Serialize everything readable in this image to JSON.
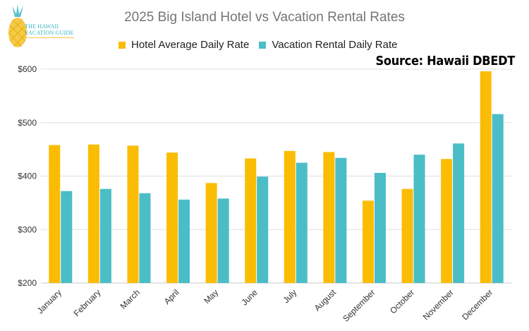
{
  "logo": {
    "line1": "THE HAWAII",
    "line2": "VACATION GUIDE"
  },
  "source_note": "Source: Hawaii DBEDT",
  "colors": {
    "hotel": "#FBBC04",
    "vacation": "#4BBDC6",
    "grid": "#e0e0e0"
  },
  "chart_data": {
    "type": "bar",
    "title": "2025 Big Island Hotel vs Vacation Rental Rates",
    "xlabel": "",
    "ylabel": "",
    "ylim": [
      200,
      600
    ],
    "yticks": [
      "$200",
      "$300",
      "$400",
      "$500",
      "$600"
    ],
    "ytick_values": [
      200,
      300,
      400,
      500,
      600
    ],
    "legend_position": "top",
    "grid": true,
    "categories": [
      "January",
      "February",
      "March",
      "April",
      "May",
      "June",
      "July",
      "August",
      "September",
      "October",
      "November",
      "December"
    ],
    "series": [
      {
        "name": "Hotel Average Daily Rate",
        "values": [
          458,
          459,
          457,
          444,
          387,
          433,
          447,
          445,
          354,
          376,
          432,
          596
        ]
      },
      {
        "name": "Vacation Rental Daily Rate",
        "values": [
          372,
          376,
          368,
          356,
          358,
          399,
          425,
          434,
          406,
          440,
          461,
          516
        ]
      }
    ]
  }
}
